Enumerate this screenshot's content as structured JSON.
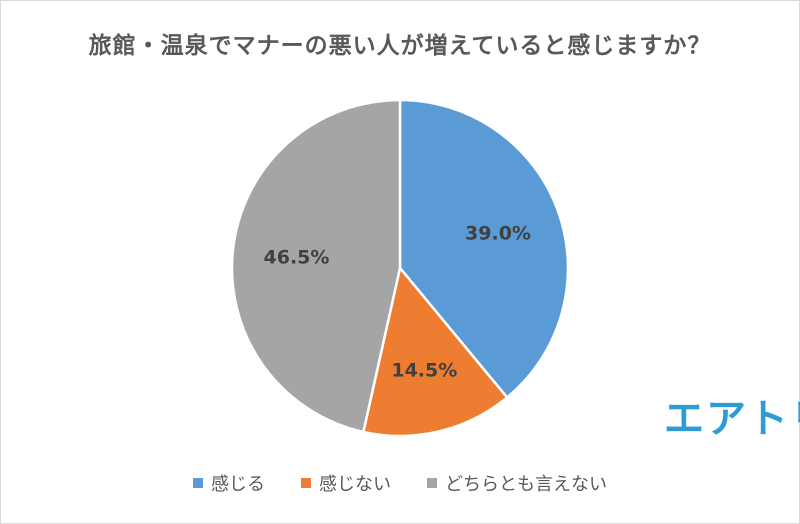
{
  "chart_data": {
    "type": "pie",
    "title": "旅館・温泉でマナーの悪い人が増えていると感じますか？",
    "slices": [
      {
        "label": "感じる",
        "value": 39.0,
        "value_label": "39.0%",
        "color": "#5b9bd5"
      },
      {
        "label": "感じない",
        "value": 14.5,
        "value_label": "14.5%",
        "color": "#ed7d31"
      },
      {
        "label": "どちらとも言えない",
        "value": 46.5,
        "value_label": "46.5%",
        "color": "#a5a5a5"
      }
    ],
    "start_angle": "12 o'clock",
    "direction": "clockwise",
    "legend_position": "bottom"
  },
  "watermark": {
    "text": "エアトリ",
    "color": "#2e9ad6"
  }
}
